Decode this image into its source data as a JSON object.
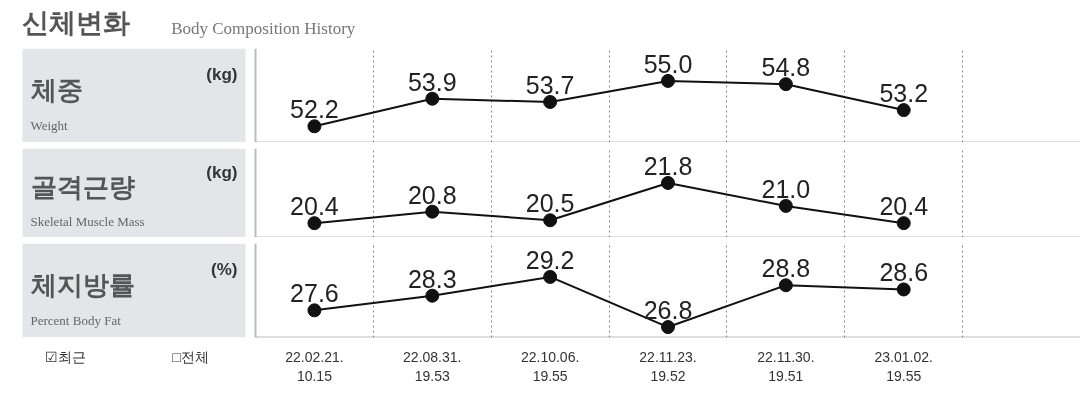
{
  "chart_data": [
    {
      "type": "line",
      "ylabel": "(kg)",
      "annotations": [
        "체중",
        "Weight",
        "신체변화",
        "Body Composition History"
      ],
      "categories": [
        null,
        null,
        null,
        null,
        null,
        null,
        null
      ],
      "values": [
        52.2,
        53.9,
        53.7,
        55.0,
        54.8,
        53.2,
        null
      ],
      "value_labels": [
        "52.2",
        "53.9",
        "53.7",
        "55.0",
        "54.8",
        "53.2",
        null
      ],
      "color": "#111111",
      "ylim": [
        51.2,
        57.0
      ],
      "grid": "x",
      "marker": "circle",
      "line_style": "solid",
      "tick_labels": false
    },
    {
      "type": "line",
      "ylabel": "(kg)",
      "annotations": [
        "골격근량",
        "Skeletal Muscle Mass"
      ],
      "categories": [
        null,
        null,
        null,
        null,
        null,
        null,
        null
      ],
      "values": [
        20.4,
        20.8,
        20.5,
        21.8,
        21.0,
        20.4,
        null
      ],
      "value_labels": [
        "20.4",
        "20.8",
        "20.5",
        "21.8",
        "21.0",
        "20.4",
        null
      ],
      "color": "#111111",
      "ylim": [
        19.9,
        23.0
      ],
      "grid": "x",
      "marker": "circle",
      "line_style": "solid",
      "tick_labels": false
    },
    {
      "type": "line",
      "ylabel": "(%)",
      "annotations": [
        "체지방률",
        "Percent Body Fat",
        "☑최근",
        "□전체"
      ],
      "categories": [
        "22.02.21.\n10.15",
        "22.08.31.\n19.53",
        "22.10.06.\n19.55",
        "22.11.23.\n19.52",
        "22.11.30.\n19.51",
        "23.01.02.\n19.55",
        null
      ],
      "values": [
        27.6,
        28.3,
        29.2,
        26.8,
        28.8,
        28.6,
        null
      ],
      "value_labels": [
        "27.6",
        "28.3",
        "29.2",
        "26.8",
        "28.8",
        "28.6",
        null
      ],
      "color": "#111111",
      "ylim": [
        26.3,
        30.8
      ],
      "grid": "x",
      "marker": "circle",
      "line_style": "solid",
      "tick_labels": "x"
    }
  ]
}
